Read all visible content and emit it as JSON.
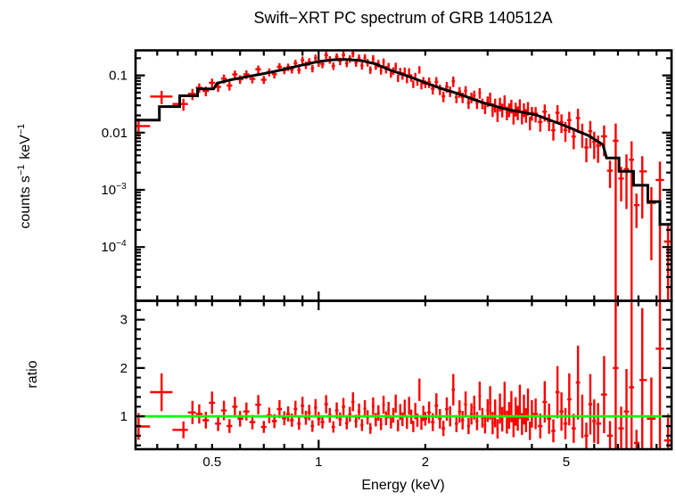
{
  "title": "Swift−XRT PC spectrum of GRB 140512A",
  "chart_data": {
    "type": "scatter",
    "description": "X-ray spectrum with model fit (top) and data/model ratio (bottom)",
    "xlabel": "Energy (keV)",
    "xscale": "log",
    "xlim": [
      0.304,
      9.92
    ],
    "xticks_labeled": [
      {
        "v": 0.5,
        "t": "0.5"
      },
      {
        "v": 1,
        "t": "1"
      },
      {
        "v": 2,
        "t": "2"
      },
      {
        "v": 5,
        "t": "5"
      }
    ],
    "xticks_minor": [
      0.35,
      0.4,
      0.45,
      0.5,
      0.6,
      0.7,
      0.8,
      0.9,
      2,
      3,
      4,
      5,
      6,
      7,
      8,
      9
    ],
    "xticks_major": [
      1
    ],
    "colors": {
      "data": "#ff0000",
      "model": "#000000",
      "reference": "#00ff00",
      "frame": "#000000",
      "background": "#ffffff"
    },
    "panels": [
      {
        "name": "spectrum",
        "ylabel_segments": [
          {
            "t": "counts s"
          },
          {
            "t": "−1",
            "sup": true
          },
          {
            "t": " keV"
          },
          {
            "t": "−1",
            "sup": true
          }
        ],
        "yscale": "log",
        "ylim": [
          1.15e-05,
          0.274
        ],
        "yticks_labeled": [
          {
            "v": 0.1,
            "t": "0.1"
          },
          {
            "v": 0.01,
            "t": "0.01"
          },
          {
            "v": 0.001,
            "t": "10",
            "sup": "−3"
          },
          {
            "v": 0.0001,
            "t": "10",
            "sup": "−4"
          }
        ],
        "model_left_bins": [
          [
            0.304,
            0.355,
            0.0165
          ],
          [
            0.355,
            0.405,
            0.0285
          ],
          [
            0.405,
            0.455,
            0.044
          ],
          [
            0.455,
            0.505,
            0.058
          ]
        ],
        "model_anchors": [
          [
            0.505,
            0.0705
          ],
          [
            0.56,
            0.083
          ],
          [
            0.62,
            0.094
          ],
          [
            0.68,
            0.104
          ],
          [
            0.75,
            0.117
          ],
          [
            0.82,
            0.133
          ],
          [
            0.9,
            0.152
          ],
          [
            1.0,
            0.175
          ],
          [
            1.1,
            0.188
          ],
          [
            1.2,
            0.19
          ],
          [
            1.32,
            0.182
          ],
          [
            1.45,
            0.158
          ],
          [
            1.6,
            0.122
          ],
          [
            1.75,
            0.102
          ],
          [
            1.95,
            0.079
          ],
          [
            2.2,
            0.06
          ],
          [
            2.5,
            0.047
          ],
          [
            2.9,
            0.0335
          ],
          [
            3.4,
            0.0255
          ],
          [
            4.1,
            0.0205
          ],
          [
            4.9,
            0.0136
          ],
          [
            5.8,
            0.0088
          ],
          [
            6.5,
            0.0056
          ]
        ],
        "model_right_bins": [
          [
            6.5,
            7.05,
            0.0036
          ],
          [
            7.05,
            7.75,
            0.0021
          ],
          [
            7.75,
            8.5,
            0.0012
          ],
          [
            8.5,
            9.2,
            0.00062
          ],
          [
            9.2,
            9.92,
            0.00025
          ]
        ]
      },
      {
        "name": "ratio",
        "ylabel_segments": [
          {
            "t": "ratio"
          }
        ],
        "yscale": "linear",
        "ylim": [
          0.32,
          3.39
        ],
        "yticks_labeled": [
          {
            "v": 1,
            "t": "1"
          },
          {
            "v": 2,
            "t": "2"
          },
          {
            "v": 3,
            "t": "3"
          }
        ],
        "yticks_minor_step": 0.2,
        "reference_line": {
          "y": 1,
          "color": "#00ff00"
        }
      }
    ],
    "points_format": [
      "energy_keV",
      "ratio_to_model",
      "fractional_error"
    ],
    "points": [
      [
        0.31,
        0.79,
        0.35
      ],
      [
        0.36,
        1.5,
        0.26
      ],
      [
        0.415,
        0.72,
        0.24
      ],
      [
        0.44,
        1.08,
        0.22
      ],
      [
        0.46,
        1.05,
        0.19
      ],
      [
        0.48,
        0.92,
        0.19
      ],
      [
        0.5,
        1.28,
        0.18
      ],
      [
        0.52,
        0.85,
        0.18
      ],
      [
        0.54,
        1.12,
        0.18
      ],
      [
        0.56,
        0.8,
        0.18
      ],
      [
        0.58,
        1.2,
        0.17
      ],
      [
        0.6,
        0.95,
        0.17
      ],
      [
        0.625,
        1.1,
        0.17
      ],
      [
        0.65,
        0.88,
        0.17
      ],
      [
        0.675,
        1.24,
        0.16
      ],
      [
        0.7,
        0.78,
        0.16
      ],
      [
        0.725,
        1.02,
        0.16
      ],
      [
        0.75,
        0.9,
        0.16
      ],
      [
        0.775,
        1.15,
        0.16
      ],
      [
        0.8,
        0.96,
        0.15
      ],
      [
        0.82,
        1.05,
        0.15
      ],
      [
        0.84,
        0.92,
        0.15
      ],
      [
        0.86,
        1.15,
        0.15
      ],
      [
        0.88,
        0.85,
        0.15
      ],
      [
        0.9,
        1.22,
        0.15
      ],
      [
        0.92,
        0.97,
        0.15
      ],
      [
        0.94,
        1.08,
        0.15
      ],
      [
        0.96,
        0.8,
        0.15
      ],
      [
        0.98,
        1.18,
        0.15
      ],
      [
        1.0,
        0.95,
        0.15
      ],
      [
        1.025,
        0.88,
        0.15
      ],
      [
        1.05,
        1.25,
        0.15
      ],
      [
        1.075,
        1.02,
        0.15
      ],
      [
        1.1,
        0.78,
        0.15
      ],
      [
        1.125,
        1.12,
        0.15
      ],
      [
        1.15,
        0.94,
        0.15
      ],
      [
        1.175,
        1.2,
        0.15
      ],
      [
        1.2,
        0.86,
        0.15
      ],
      [
        1.225,
        1.04,
        0.15
      ],
      [
        1.25,
        1.3,
        0.15
      ],
      [
        1.275,
        0.9,
        0.15
      ],
      [
        1.3,
        1.1,
        0.15
      ],
      [
        1.325,
        0.82,
        0.15
      ],
      [
        1.35,
        1.16,
        0.15
      ],
      [
        1.375,
        0.98,
        0.15
      ],
      [
        1.4,
        0.75,
        0.15
      ],
      [
        1.425,
        1.21,
        0.15
      ],
      [
        1.45,
        0.93,
        0.15
      ],
      [
        1.475,
        1.07,
        0.15
      ],
      [
        1.5,
        0.84,
        0.15
      ],
      [
        1.525,
        1.24,
        0.15
      ],
      [
        1.55,
        0.96,
        0.15
      ],
      [
        1.575,
        1.13,
        0.15
      ],
      [
        1.6,
        0.88,
        0.15
      ],
      [
        1.625,
        1.02,
        0.15
      ],
      [
        1.65,
        1.26,
        0.15
      ],
      [
        1.675,
        0.81,
        0.15
      ],
      [
        1.7,
        1.09,
        0.15
      ],
      [
        1.725,
        0.94,
        0.15
      ],
      [
        1.75,
        1.17,
        0.15
      ],
      [
        1.775,
        0.87,
        0.15
      ],
      [
        1.8,
        1.22,
        0.15
      ],
      [
        1.825,
        0.99,
        0.15
      ],
      [
        1.85,
        0.79,
        0.15
      ],
      [
        1.875,
        1.11,
        0.15
      ],
      [
        1.9,
        0.92,
        0.15
      ],
      [
        1.925,
        1.55,
        0.15
      ],
      [
        1.95,
        0.85,
        0.15
      ],
      [
        1.975,
        1.06,
        0.15
      ],
      [
        2.0,
        0.95,
        0.15
      ],
      [
        2.05,
        1.08,
        0.21
      ],
      [
        2.1,
        0.88,
        0.21
      ],
      [
        2.15,
        1.22,
        0.21
      ],
      [
        2.2,
        0.95,
        0.21
      ],
      [
        2.25,
        0.75,
        0.21
      ],
      [
        2.3,
        1.15,
        0.21
      ],
      [
        2.35,
        1.0,
        0.21
      ],
      [
        2.4,
        1.55,
        0.21
      ],
      [
        2.45,
        0.85,
        0.21
      ],
      [
        2.5,
        1.1,
        0.21
      ],
      [
        2.55,
        0.92,
        0.21
      ],
      [
        2.6,
        1.25,
        0.21
      ],
      [
        2.65,
        0.8,
        0.21
      ],
      [
        2.7,
        1.05,
        0.21
      ],
      [
        2.75,
        1.18,
        0.21
      ],
      [
        2.8,
        0.9,
        0.21
      ],
      [
        2.85,
        1.42,
        0.21
      ],
      [
        2.9,
        0.97,
        0.21
      ],
      [
        2.95,
        0.82,
        0.21
      ],
      [
        3.0,
        1.12,
        0.21
      ],
      [
        3.05,
        1.28,
        0.27
      ],
      [
        3.1,
        0.86,
        0.27
      ],
      [
        3.15,
        1.06,
        0.27
      ],
      [
        3.2,
        0.74,
        0.27
      ],
      [
        3.25,
        1.16,
        0.27
      ],
      [
        3.3,
        0.94,
        0.27
      ],
      [
        3.35,
        1.35,
        0.27
      ],
      [
        3.4,
        0.88,
        0.27
      ],
      [
        3.45,
        1.02,
        0.27
      ],
      [
        3.5,
        1.2,
        0.27
      ],
      [
        3.55,
        0.78,
        0.27
      ],
      [
        3.6,
        1.1,
        0.27
      ],
      [
        3.65,
        0.96,
        0.27
      ],
      [
        3.7,
        1.3,
        0.27
      ],
      [
        3.75,
        0.84,
        0.27
      ],
      [
        3.8,
        1.14,
        0.27
      ],
      [
        3.85,
        0.92,
        0.27
      ],
      [
        3.9,
        1.24,
        0.27
      ],
      [
        3.95,
        0.7,
        0.27
      ],
      [
        4.0,
        1.05,
        0.27
      ],
      [
        4.1,
        1.05,
        0.3
      ],
      [
        4.225,
        0.8,
        0.32
      ],
      [
        4.35,
        1.3,
        0.33
      ],
      [
        4.475,
        0.95,
        0.33
      ],
      [
        4.6,
        0.7,
        0.34
      ],
      [
        4.725,
        1.5,
        0.36
      ],
      [
        4.85,
        1.1,
        0.36
      ],
      [
        4.975,
        0.85,
        0.38
      ],
      [
        5.1,
        1.35,
        0.4
      ],
      [
        5.25,
        0.75,
        0.4
      ],
      [
        5.4,
        1.7,
        0.45
      ],
      [
        5.55,
        1.0,
        0.45
      ],
      [
        5.7,
        0.6,
        0.45
      ],
      [
        5.85,
        1.25,
        0.5
      ],
      [
        6.0,
        0.9,
        0.5
      ],
      [
        6.15,
        0.85,
        0.5
      ],
      [
        6.4,
        1.45,
        0.55
      ],
      [
        6.65,
        0.6,
        0.5
      ],
      [
        6.9,
        2.0,
        1.0
      ],
      [
        7.15,
        0.75,
        0.6
      ],
      [
        7.4,
        1.1,
        0.8
      ],
      [
        7.65,
        1.6,
        1.1
      ],
      [
        7.9,
        0.45,
        0.6
      ],
      [
        8.2,
        1.75,
        0.85
      ],
      [
        8.7,
        0.95,
        0.9
      ],
      [
        9.2,
        2.4,
        1.1
      ],
      [
        9.7,
        0.5,
        1.1
      ]
    ]
  }
}
